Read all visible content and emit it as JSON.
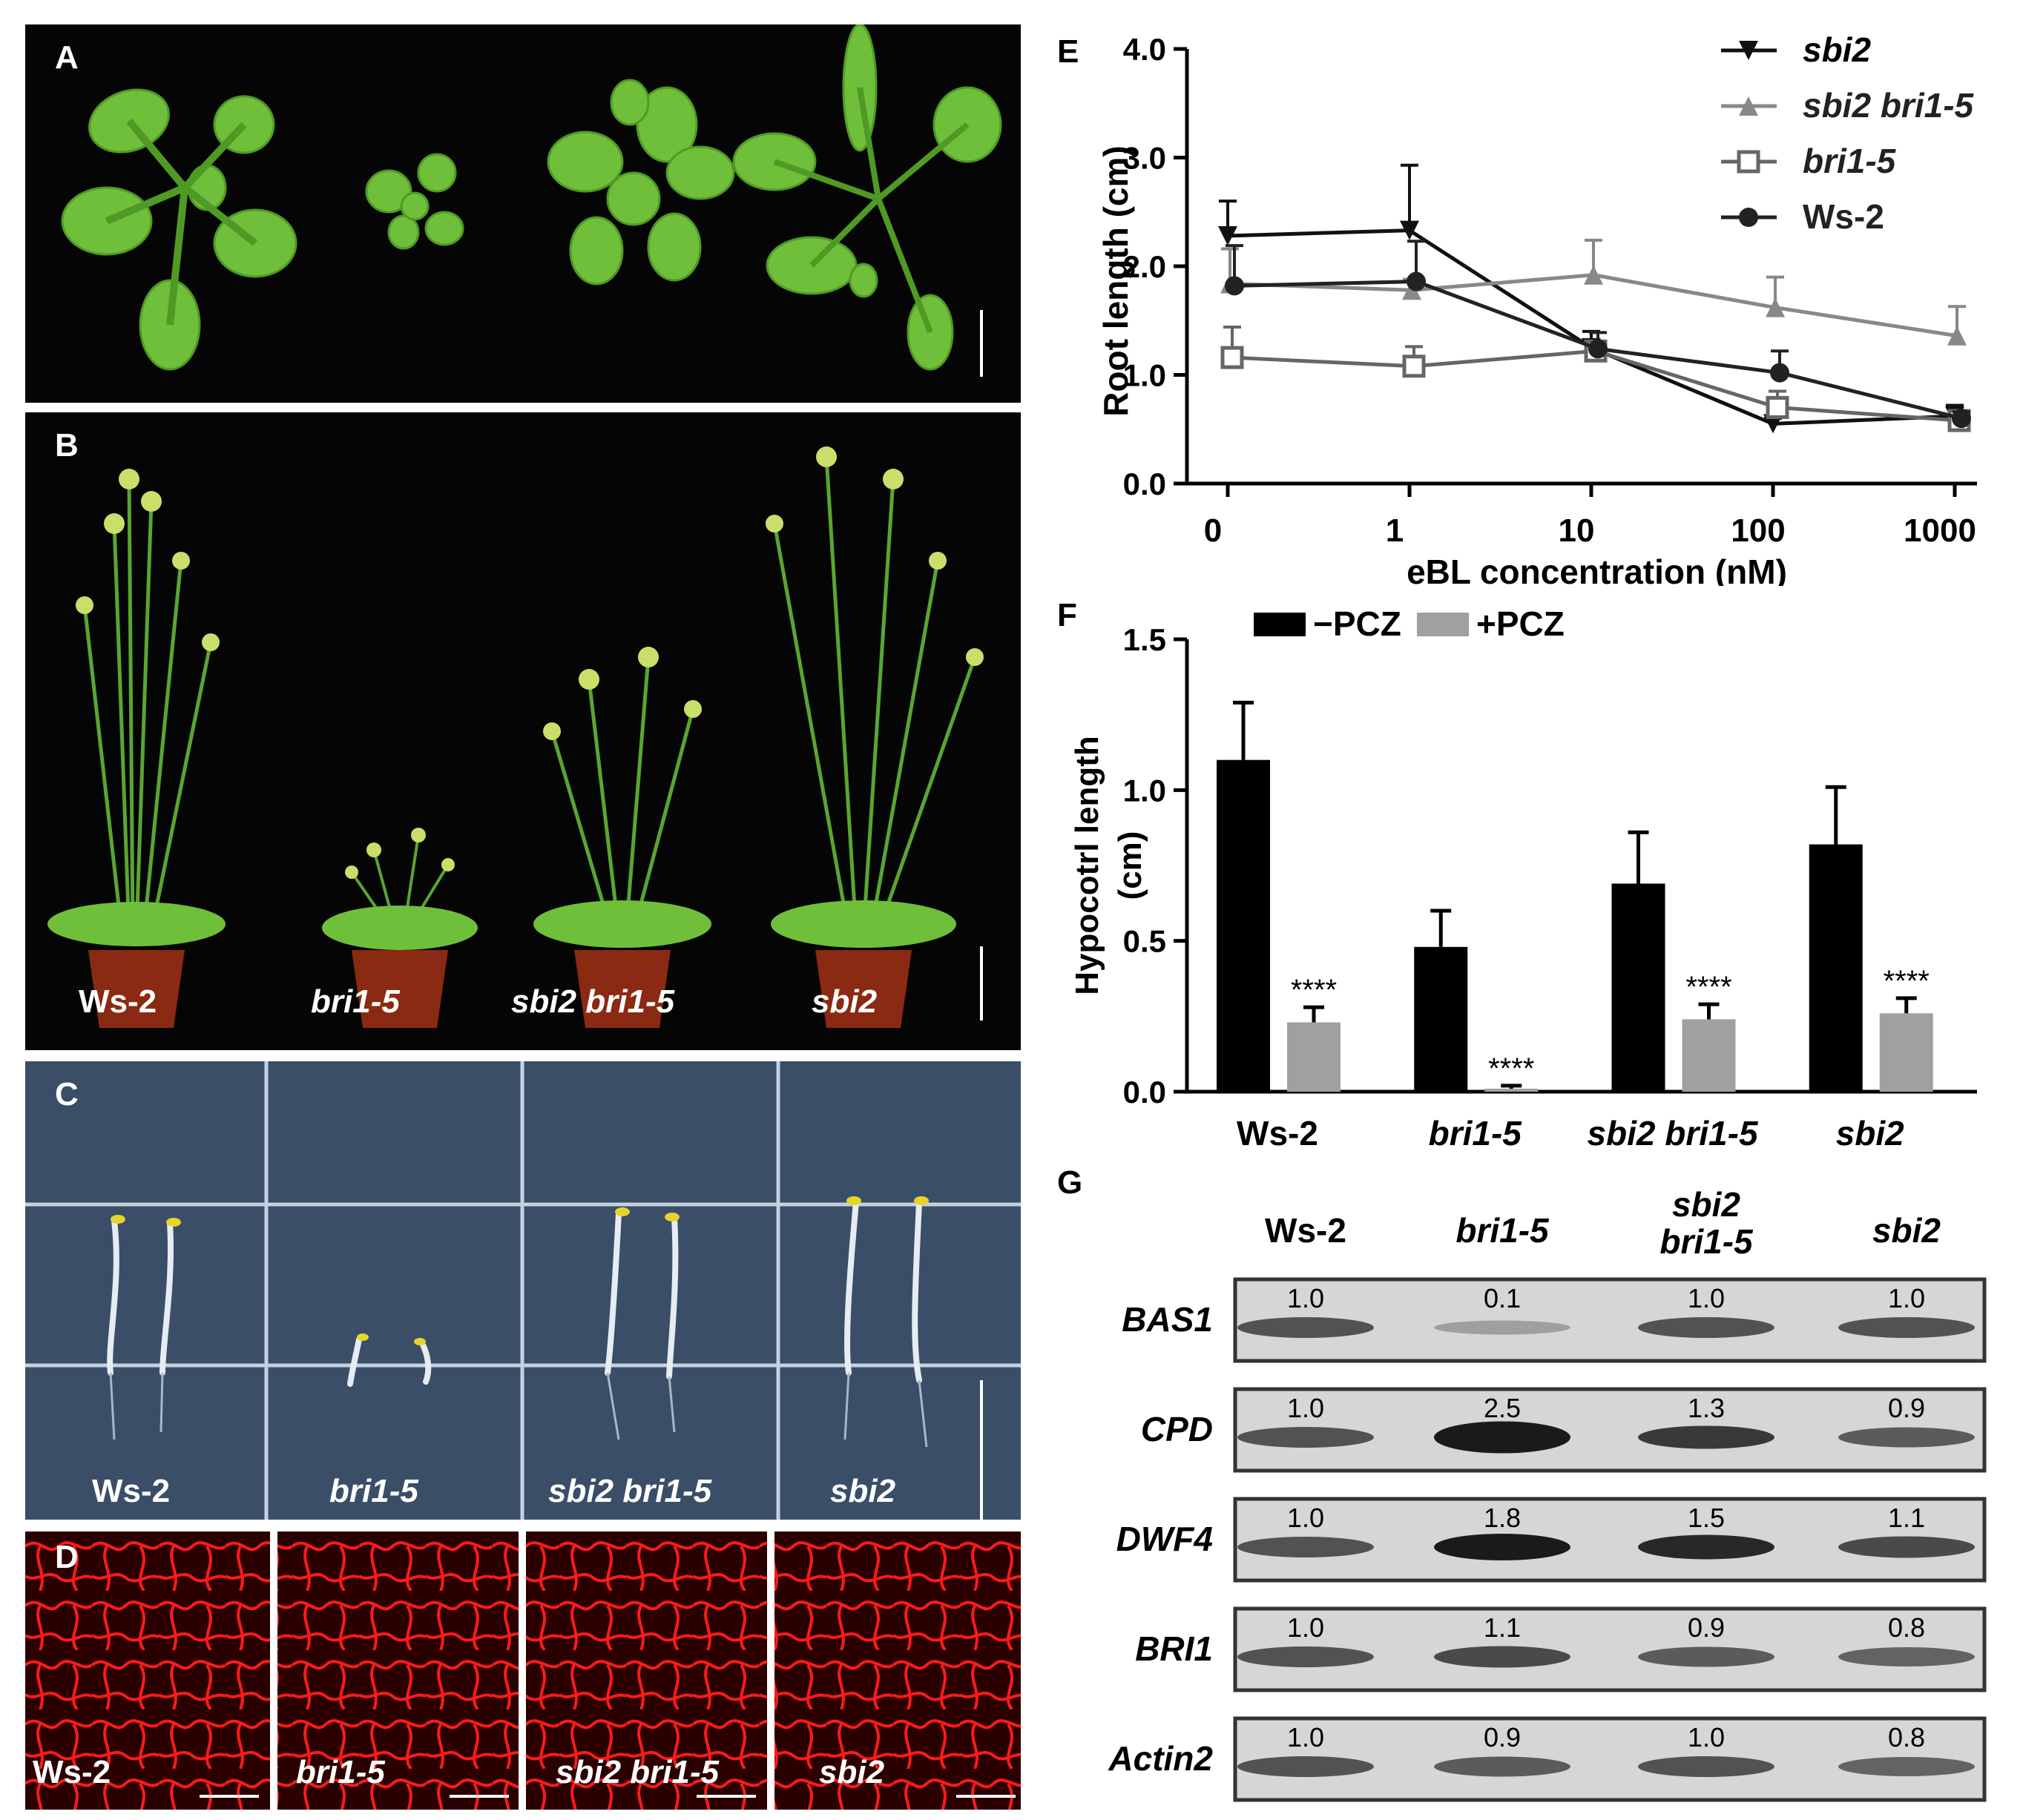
{
  "panel_labels": {
    "A": "A",
    "B": "B",
    "C": "C",
    "D": "D",
    "E": "E",
    "F": "F",
    "G": "G"
  },
  "genotypes": [
    "Ws-2",
    "bri1-5",
    "sbi2 bri1-5",
    "sbi2"
  ],
  "colors": {
    "leaf": "#6fbf3a",
    "pot": "#8a2a12",
    "plate": "#3a4e68",
    "cell_wall": "#ff1a1a",
    "dark": "#050505"
  },
  "chart_data": [
    {
      "id": "E",
      "type": "line",
      "xlabel": "eBL concentration (nM)",
      "ylabel": "Root length (cm)",
      "x": [
        "0",
        "1",
        "10",
        "100",
        "1000"
      ],
      "ylim": [
        0,
        4.0
      ],
      "yticks": [
        "0.0",
        "1.0",
        "2.0",
        "3.0",
        "4.0"
      ],
      "legend_position": "top-right",
      "series": [
        {
          "name": "sbi2",
          "marker": "triangle-down",
          "color": "#111111",
          "values": [
            2.28,
            2.33,
            1.25,
            0.55,
            0.62
          ],
          "errors": [
            0.32,
            0.6,
            0.15,
            0.05,
            0.1
          ]
        },
        {
          "name": "sbi2 bri1-5",
          "marker": "triangle-up",
          "color": "#888888",
          "values": [
            1.84,
            1.78,
            1.92,
            1.62,
            1.36
          ],
          "errors": [
            0.32,
            0.1,
            0.32,
            0.28,
            0.27
          ]
        },
        {
          "name": "bri1-5",
          "marker": "square-open",
          "color": "#666666",
          "values": [
            1.16,
            1.08,
            1.22,
            0.7,
            0.58
          ],
          "errors": [
            0.28,
            0.18,
            0.06,
            0.15,
            0.05
          ]
        },
        {
          "name": "Ws-2",
          "marker": "circle",
          "color": "#222222",
          "values": [
            1.82,
            1.86,
            1.24,
            1.02,
            0.6
          ],
          "errors": [
            0.37,
            0.37,
            0.15,
            0.2,
            0.06
          ]
        }
      ]
    },
    {
      "id": "F",
      "type": "bar",
      "ylabel": [
        "Hypocotrl length",
        "(cm)"
      ],
      "categories": [
        "Ws-2",
        "bri1-5",
        "sbi2 bri1-5",
        "sbi2"
      ],
      "ylim": [
        0,
        1.5
      ],
      "yticks": [
        "0.0",
        "0.5",
        "1.0",
        "1.5"
      ],
      "legend_position": "top",
      "series": [
        {
          "name": "−PCZ",
          "color": "#000000",
          "values": [
            1.1,
            0.48,
            0.69,
            0.82
          ],
          "errors": [
            0.19,
            0.12,
            0.17,
            0.19
          ]
        },
        {
          "name": "+PCZ",
          "color": "#a0a0a0",
          "values": [
            0.23,
            0.01,
            0.24,
            0.26
          ],
          "errors": [
            0.05,
            0.01,
            0.05,
            0.05
          ]
        }
      ],
      "significance": [
        "****",
        "****",
        "****",
        "****"
      ]
    }
  ],
  "gel": {
    "columns": [
      "Ws-2",
      "bri1-5",
      "sbi2\nbri1-5",
      "sbi2"
    ],
    "rows": [
      {
        "gene": "BAS1",
        "values": [
          "1.0",
          "0.1",
          "1.0",
          "1.0"
        ]
      },
      {
        "gene": "CPD",
        "values": [
          "1.0",
          "2.5",
          "1.3",
          "0.9"
        ]
      },
      {
        "gene": "DWF4",
        "values": [
          "1.0",
          "1.8",
          "1.5",
          "1.1"
        ]
      },
      {
        "gene": "BRI1",
        "values": [
          "1.0",
          "1.1",
          "0.9",
          "0.8"
        ]
      },
      {
        "gene": "Actin2",
        "values": [
          "1.0",
          "0.9",
          "1.0",
          "0.8"
        ]
      }
    ]
  }
}
